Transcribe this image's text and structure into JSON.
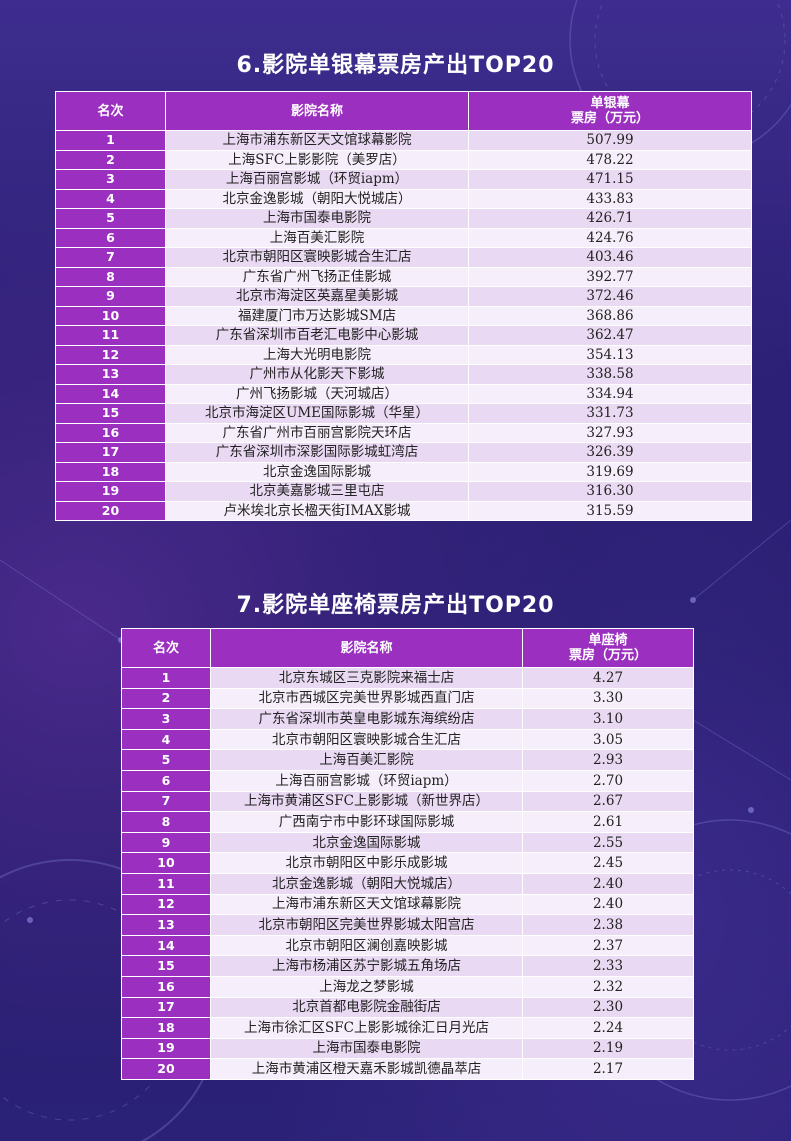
{
  "section1": {
    "title": "6.影院单银幕票房产出TOP20",
    "headers": {
      "rank": "名次",
      "name": "影院名称",
      "value_line1": "单银幕",
      "value_line2": "票房（万元）"
    },
    "rows": [
      {
        "rank": "1",
        "name": "上海市浦东新区天文馆球幕影院",
        "value": "507.99"
      },
      {
        "rank": "2",
        "name": "上海SFC上影影院（美罗店）",
        "value": "478.22"
      },
      {
        "rank": "3",
        "name": "上海百丽宫影城（环贸iapm）",
        "value": "471.15"
      },
      {
        "rank": "4",
        "name": "北京金逸影城（朝阳大悦城店）",
        "value": "433.83"
      },
      {
        "rank": "5",
        "name": "上海市国泰电影院",
        "value": "426.71"
      },
      {
        "rank": "6",
        "name": "上海百美汇影院",
        "value": "424.76"
      },
      {
        "rank": "7",
        "name": "北京市朝阳区寰映影城合生汇店",
        "value": "403.46"
      },
      {
        "rank": "8",
        "name": "广东省广州飞扬正佳影城",
        "value": "392.77"
      },
      {
        "rank": "9",
        "name": "北京市海淀区英嘉星美影城",
        "value": "372.46"
      },
      {
        "rank": "10",
        "name": "福建厦门市万达影城SM店",
        "value": "368.86"
      },
      {
        "rank": "11",
        "name": "广东省深圳市百老汇电影中心影城",
        "value": "362.47"
      },
      {
        "rank": "12",
        "name": "上海大光明电影院",
        "value": "354.13"
      },
      {
        "rank": "13",
        "name": "广州市从化影天下影城",
        "value": "338.58"
      },
      {
        "rank": "14",
        "name": "广州飞扬影城（天河城店）",
        "value": "334.94"
      },
      {
        "rank": "15",
        "name": "北京市海淀区UME国际影城（华星）",
        "value": "331.73"
      },
      {
        "rank": "16",
        "name": "广东省广州市百丽宫影院天环店",
        "value": "327.93"
      },
      {
        "rank": "17",
        "name": "广东省深圳市深影国际影城虹湾店",
        "value": "326.39"
      },
      {
        "rank": "18",
        "name": "北京金逸国际影城",
        "value": "319.69"
      },
      {
        "rank": "19",
        "name": "北京美嘉影城三里屯店",
        "value": "316.30"
      },
      {
        "rank": "20",
        "name": "卢米埃北京长楹天街IMAX影城",
        "value": "315.59"
      }
    ]
  },
  "section2": {
    "title": "7.影院单座椅票房产出TOP20",
    "headers": {
      "rank": "名次",
      "name": "影院名称",
      "value_line1": "单座椅",
      "value_line2": "票房（万元）"
    },
    "rows": [
      {
        "rank": "1",
        "name": "北京东城区三克影院来福士店",
        "value": "4.27"
      },
      {
        "rank": "2",
        "name": "北京市西城区完美世界影城西直门店",
        "value": "3.30"
      },
      {
        "rank": "3",
        "name": "广东省深圳市英皇电影城东海缤纷店",
        "value": "3.10"
      },
      {
        "rank": "4",
        "name": "北京市朝阳区寰映影城合生汇店",
        "value": "3.05"
      },
      {
        "rank": "5",
        "name": "上海百美汇影院",
        "value": "2.93"
      },
      {
        "rank": "6",
        "name": "上海百丽宫影城（环贸iapm）",
        "value": "2.70"
      },
      {
        "rank": "7",
        "name": "上海市黄浦区SFC上影影城（新世界店）",
        "value": "2.67"
      },
      {
        "rank": "8",
        "name": "广西南宁市中影环球国际影城",
        "value": "2.61"
      },
      {
        "rank": "9",
        "name": "北京金逸国际影城",
        "value": "2.55"
      },
      {
        "rank": "10",
        "name": "北京市朝阳区中影乐成影城",
        "value": "2.45"
      },
      {
        "rank": "11",
        "name": "北京金逸影城（朝阳大悦城店）",
        "value": "2.40"
      },
      {
        "rank": "12",
        "name": "上海市浦东新区天文馆球幕影院",
        "value": "2.40"
      },
      {
        "rank": "13",
        "name": "北京市朝阳区完美世界影城太阳宫店",
        "value": "2.38"
      },
      {
        "rank": "14",
        "name": "北京市朝阳区澜创嘉映影城",
        "value": "2.37"
      },
      {
        "rank": "15",
        "name": "上海市杨浦区苏宁影城五角场店",
        "value": "2.33"
      },
      {
        "rank": "16",
        "name": "上海龙之梦影城",
        "value": "2.32"
      },
      {
        "rank": "17",
        "name": "北京首都电影院金融街店",
        "value": "2.30"
      },
      {
        "rank": "18",
        "name": "上海市徐汇区SFC上影影城徐汇日月光店",
        "value": "2.24"
      },
      {
        "rank": "19",
        "name": "上海市国泰电影院",
        "value": "2.19"
      },
      {
        "rank": "20",
        "name": "上海市黄浦区橙天嘉禾影城凯德晶萃店",
        "value": "2.17"
      }
    ]
  }
}
